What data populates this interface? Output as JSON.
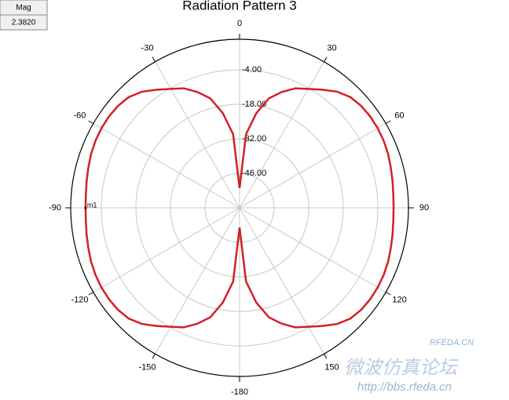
{
  "chart_data": {
    "type": "polar",
    "title": "Radiation Pattern 3",
    "x": [
      -180,
      -175,
      -170,
      -165,
      -160,
      -155,
      -150,
      -145,
      -140,
      -135,
      -130,
      -125,
      -120,
      -115,
      -110,
      -105,
      -100,
      -95,
      -90,
      -85,
      -80,
      -75,
      -70,
      -65,
      -60,
      -55,
      -50,
      -45,
      -40,
      -35,
      -30,
      -25,
      -20,
      -15,
      -10,
      -5,
      0,
      5,
      10,
      15,
      20,
      25,
      30,
      35,
      40,
      45,
      50,
      55,
      60,
      65,
      70,
      75,
      80,
      85,
      90,
      95,
      100,
      105,
      110,
      115,
      120,
      125,
      130,
      135,
      140,
      145,
      150,
      155,
      160,
      165,
      170,
      175,
      180
    ],
    "series": [
      {
        "color": "#d42020",
        "values": [
          -52,
          -30,
          -21,
          -14,
          -10,
          -6.5,
          -4.3,
          -1.5,
          1.5,
          3.5,
          4.3,
          4.6,
          4.6,
          4.4,
          4.0,
          3.4,
          2.9,
          2.5,
          2.38,
          2.5,
          2.9,
          3.4,
          4.0,
          4.4,
          4.6,
          4.6,
          4.3,
          3.5,
          1.5,
          -1.5,
          -4.3,
          -6.5,
          -10,
          -14,
          -21,
          -30,
          -52,
          -30,
          -21,
          -14,
          -10,
          -6.5,
          -4.3,
          -1.5,
          1.5,
          3.5,
          4.3,
          4.6,
          4.6,
          4.4,
          4.0,
          3.4,
          2.9,
          2.5,
          2.38,
          2.5,
          2.9,
          3.4,
          4.0,
          4.4,
          4.6,
          4.6,
          4.3,
          3.5,
          1.5,
          -1.5,
          -4.3,
          -6.5,
          -10,
          -14,
          -21,
          -30,
          -52
        ]
      }
    ],
    "xticks": [
      -180,
      -150,
      -120,
      -90,
      -60,
      -30,
      0,
      30,
      60,
      90,
      120,
      150
    ],
    "rlim": [
      -60,
      8.4
    ],
    "rticks": [
      {
        "value": -4,
        "label": "-4.00"
      },
      {
        "value": -18,
        "label": "-18.00"
      },
      {
        "value": -32,
        "label": "-32.00"
      },
      {
        "value": -46,
        "label": "-46.00"
      }
    ],
    "marker": {
      "name": "m1",
      "angle": -90,
      "value": 2.382,
      "column": "Mag",
      "value_label": "2.3820"
    },
    "watermarks": [
      "RFEDA.CN",
      "微波仿真论坛",
      "http://bbs.rfeda.cn"
    ]
  }
}
